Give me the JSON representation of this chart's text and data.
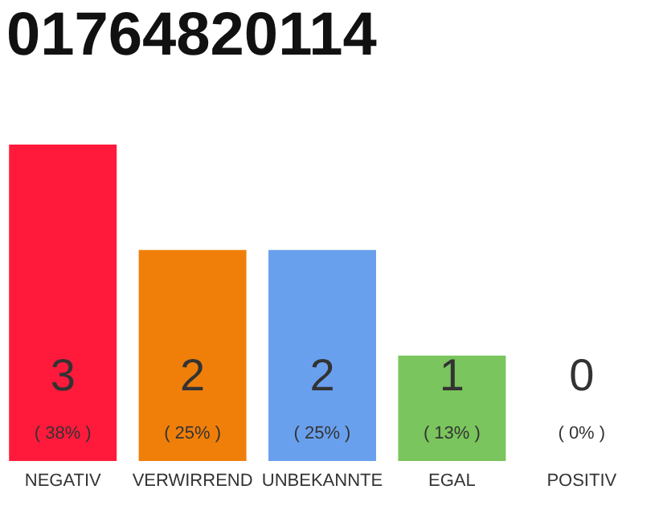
{
  "chart_data": {
    "type": "bar",
    "title": "01764820114",
    "categories": [
      "NEGATIV",
      "VERWIRREND",
      "UNBEKANNTE",
      "EGAL",
      "POSITIV"
    ],
    "values": [
      3,
      2,
      2,
      1,
      0
    ],
    "colors": [
      "#ff1a3c",
      "#f07f0a",
      "#69a0ee",
      "#7ac55d",
      "#9e9e9e"
    ],
    "data_labels": true,
    "annotations": [
      "( 38% )",
      "( 25% )",
      "( 25% )",
      "( 13% )",
      "( 0% )"
    ]
  }
}
